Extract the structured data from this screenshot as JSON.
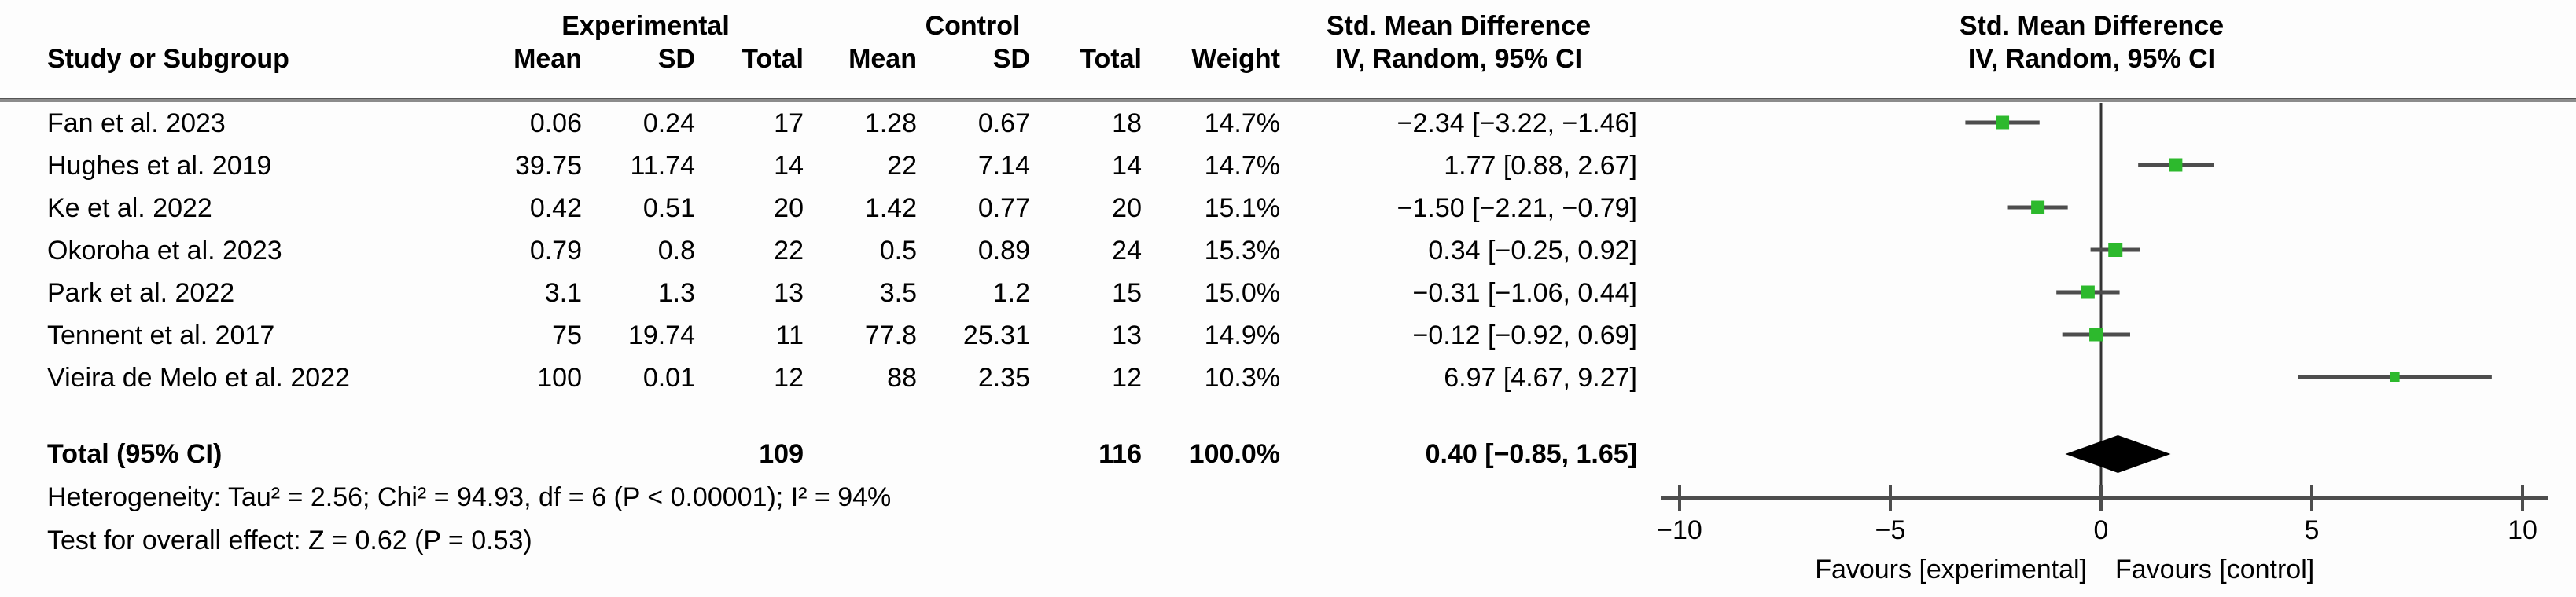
{
  "table": {
    "experimental_header": "Experimental",
    "control_header": "Control",
    "smd_header": "Std. Mean Difference",
    "method_header": "IV, Random, 95% CI",
    "study_header": "Study or Subgroup",
    "mean_header": "Mean",
    "sd_header": "SD",
    "total_header": "Total",
    "weight_header": "Weight"
  },
  "chart_data": {
    "type": "forest",
    "title": "Std. Mean Difference",
    "method": "IV, Random, 95% CI",
    "marker_color": "#2db92d",
    "line_color": "#4d4d4d",
    "diamond_color": "#000000",
    "axis": {
      "min": -10,
      "max": 10,
      "ticks": [
        -10,
        -5,
        0,
        5,
        10
      ]
    },
    "favours_left": "Favours [experimental]",
    "favours_right": "Favours [control]",
    "studies": [
      {
        "name": "Fan et al. 2023",
        "exp_mean": "0.06",
        "exp_sd": "0.24",
        "exp_total": "17",
        "ctrl_mean": "1.28",
        "ctrl_sd": "0.67",
        "ctrl_total": "18",
        "weight": "14.7%",
        "weight_value": 14.7,
        "est": -2.34,
        "lo": -3.22,
        "hi": -1.46,
        "ci_text": "−2.34 [−3.22, −1.46]"
      },
      {
        "name": "Hughes et al. 2019",
        "exp_mean": "39.75",
        "exp_sd": "11.74",
        "exp_total": "14",
        "ctrl_mean": "22",
        "ctrl_sd": "7.14",
        "ctrl_total": "14",
        "weight": "14.7%",
        "weight_value": 14.7,
        "est": 1.77,
        "lo": 0.88,
        "hi": 2.67,
        "ci_text": "1.77 [0.88, 2.67]"
      },
      {
        "name": "Ke et al. 2022",
        "exp_mean": "0.42",
        "exp_sd": "0.51",
        "exp_total": "20",
        "ctrl_mean": "1.42",
        "ctrl_sd": "0.77",
        "ctrl_total": "20",
        "weight": "15.1%",
        "weight_value": 15.1,
        "est": -1.5,
        "lo": -2.21,
        "hi": -0.79,
        "ci_text": "−1.50 [−2.21, −0.79]"
      },
      {
        "name": "Okoroha et al. 2023",
        "exp_mean": "0.79",
        "exp_sd": "0.8",
        "exp_total": "22",
        "ctrl_mean": "0.5",
        "ctrl_sd": "0.89",
        "ctrl_total": "24",
        "weight": "15.3%",
        "weight_value": 15.3,
        "est": 0.34,
        "lo": -0.25,
        "hi": 0.92,
        "ci_text": "0.34 [−0.25, 0.92]"
      },
      {
        "name": "Park et al. 2022",
        "exp_mean": "3.1",
        "exp_sd": "1.3",
        "exp_total": "13",
        "ctrl_mean": "3.5",
        "ctrl_sd": "1.2",
        "ctrl_total": "15",
        "weight": "15.0%",
        "weight_value": 15.0,
        "est": -0.31,
        "lo": -1.06,
        "hi": 0.44,
        "ci_text": "−0.31 [−1.06, 0.44]"
      },
      {
        "name": "Tennent et al. 2017",
        "exp_mean": "75",
        "exp_sd": "19.74",
        "exp_total": "11",
        "ctrl_mean": "77.8",
        "ctrl_sd": "25.31",
        "ctrl_total": "13",
        "weight": "14.9%",
        "weight_value": 14.9,
        "est": -0.12,
        "lo": -0.92,
        "hi": 0.69,
        "ci_text": "−0.12 [−0.92, 0.69]"
      },
      {
        "name": "Vieira de Melo et al. 2022",
        "exp_mean": "100",
        "exp_sd": "0.01",
        "exp_total": "12",
        "ctrl_mean": "88",
        "ctrl_sd": "2.35",
        "ctrl_total": "12",
        "weight": "10.3%",
        "weight_value": 10.3,
        "est": 6.97,
        "lo": 4.67,
        "hi": 9.27,
        "ci_text": "6.97 [4.67, 9.27]"
      }
    ],
    "total": {
      "label": "Total (95% CI)",
      "exp_total": "109",
      "ctrl_total": "116",
      "weight": "100.0%",
      "est": 0.4,
      "lo": -0.85,
      "hi": 1.65,
      "ci_text": "0.40 [−0.85, 1.65]"
    },
    "heterogeneity": "Heterogeneity: Tau² = 2.56; Chi² = 94.93, df = 6 (P < 0.00001); I² = 94%",
    "overall_effect": "Test for overall effect: Z = 0.62 (P = 0.53)"
  }
}
